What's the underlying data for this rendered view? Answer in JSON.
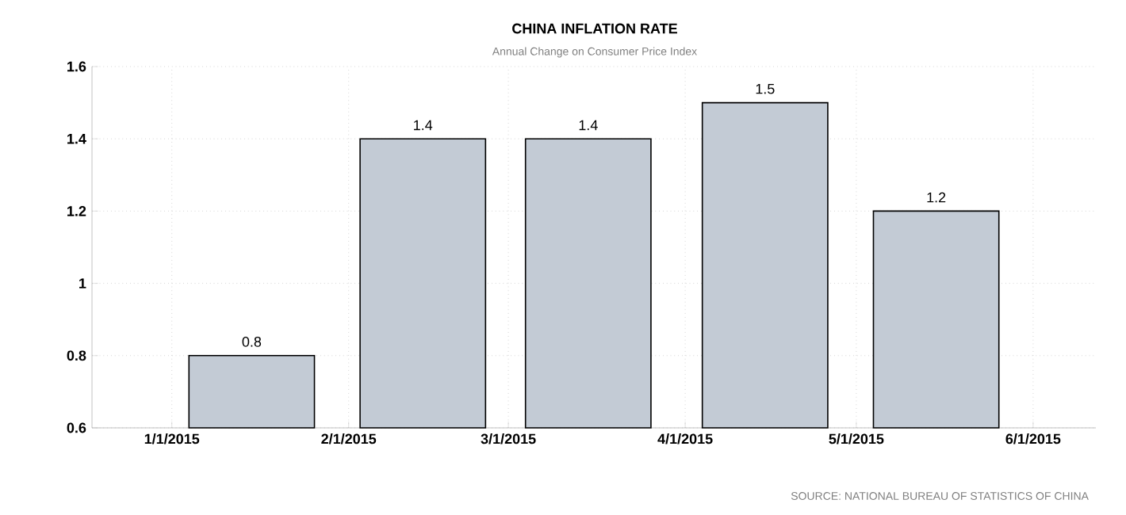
{
  "chart_data": {
    "type": "bar",
    "title": "CHINA INFLATION RATE",
    "subtitle": "Annual Change on Consumer Price Index",
    "x": [
      "2015-01-15",
      "2015-02-14",
      "2015-03-15",
      "2015-04-15",
      "2015-05-15"
    ],
    "values": [
      0.8,
      1.4,
      1.4,
      1.5,
      1.2
    ],
    "color": "#c3cbd5",
    "data_labels": true,
    "xlim": [
      "2014-12-18",
      "2015-06-12"
    ],
    "xticks": [
      {
        "value": "2015-01-01",
        "label": "1/1/2015"
      },
      {
        "value": "2015-02-01",
        "label": "2/1/2015"
      },
      {
        "value": "2015-03-01",
        "label": "3/1/2015"
      },
      {
        "value": "2015-04-01",
        "label": "4/1/2015"
      },
      {
        "value": "2015-05-01",
        "label": "5/1/2015"
      },
      {
        "value": "2015-06-01",
        "label": "6/1/2015"
      }
    ],
    "ylim": [
      0.6,
      1.6
    ],
    "yticks": [
      0.6,
      0.8,
      1,
      1.2,
      1.4,
      1.6
    ],
    "grid": true,
    "annotations": [
      "SOURCE: NATIONAL BUREAU OF STATISTICS OF CHINA"
    ]
  }
}
